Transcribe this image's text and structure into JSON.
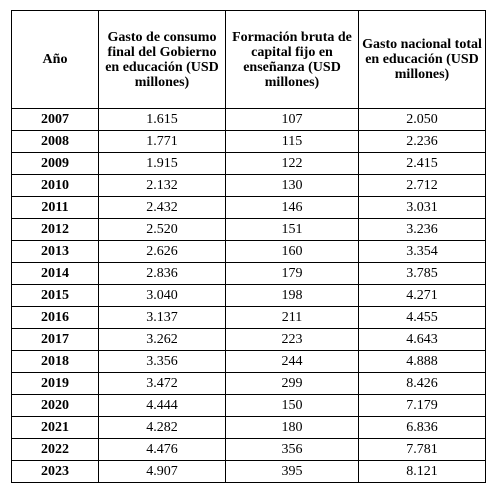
{
  "table": {
    "headers": {
      "year": "Año",
      "gov": "Gasto de consumo final del Gobierno en educación (USD millones)",
      "capital": "Formación bruta de capital fijo en enseñanza (USD millones)",
      "total": "Gasto nacional total en educación (USD millones)"
    },
    "rows": [
      {
        "year": "2007",
        "gov": "1.615",
        "capital": "107",
        "total": "2.050"
      },
      {
        "year": "2008",
        "gov": "1.771",
        "capital": "115",
        "total": "2.236"
      },
      {
        "year": "2009",
        "gov": "1.915",
        "capital": "122",
        "total": "2.415"
      },
      {
        "year": "2010",
        "gov": "2.132",
        "capital": "130",
        "total": "2.712"
      },
      {
        "year": "2011",
        "gov": "2.432",
        "capital": "146",
        "total": "3.031"
      },
      {
        "year": "2012",
        "gov": "2.520",
        "capital": "151",
        "total": "3.236"
      },
      {
        "year": "2013",
        "gov": "2.626",
        "capital": "160",
        "total": "3.354"
      },
      {
        "year": "2014",
        "gov": "2.836",
        "capital": "179",
        "total": "3.785"
      },
      {
        "year": "2015",
        "gov": "3.040",
        "capital": "198",
        "total": "4.271"
      },
      {
        "year": "2016",
        "gov": "3.137",
        "capital": "211",
        "total": "4.455"
      },
      {
        "year": "2017",
        "gov": "3.262",
        "capital": "223",
        "total": "4.643"
      },
      {
        "year": "2018",
        "gov": "3.356",
        "capital": "244",
        "total": "4.888"
      },
      {
        "year": "2019",
        "gov": "3.472",
        "capital": "299",
        "total": "8.426"
      },
      {
        "year": "2020",
        "gov": "4.444",
        "capital": "150",
        "total": "7.179"
      },
      {
        "year": "2021",
        "gov": "4.282",
        "capital": "180",
        "total": "6.836"
      },
      {
        "year": "2022",
        "gov": "4.476",
        "capital": "356",
        "total": "7.781"
      },
      {
        "year": "2023",
        "gov": "4.907",
        "capital": "395",
        "total": "8.121"
      }
    ]
  }
}
